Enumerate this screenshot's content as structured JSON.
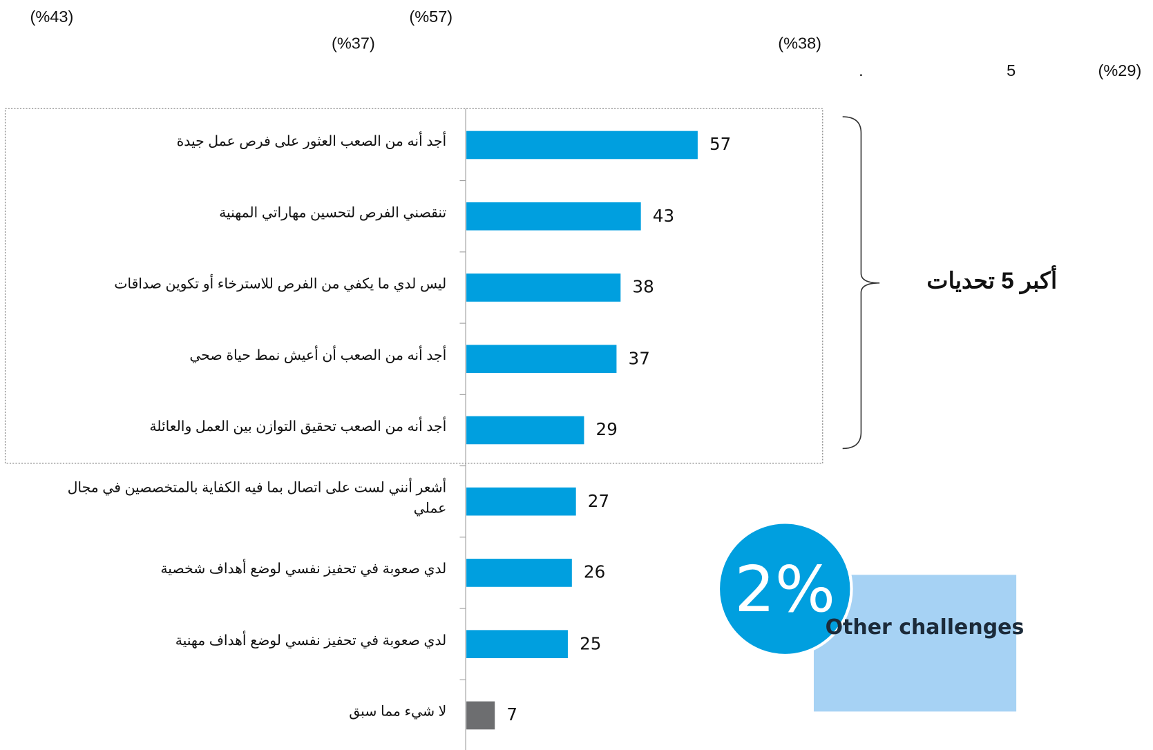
{
  "header_fragments": [
    "(%43)",
    "(%57)",
    "(%37)",
    "(%38)",
    "5",
    ".",
    "(%29)"
  ],
  "chart_data": {
    "type": "bar",
    "orientation": "horizontal",
    "categories": [
      "أجد أنه من الصعب العثور على فرص عمل جيدة",
      "تنقصني الفرص لتحسين مهاراتي المهنية",
      "ليس لدي ما يكفي من الفرص للاسترخاء أو تكوين صداقات",
      "أجد أنه من الصعب أن أعيش نمط حياة صحي",
      "أجد أنه من الصعب تحقيق التوازن بين العمل والعائلة",
      "أشعر أنني لست على اتصال بما فيه الكفاية بالمتخصصين في مجال عملي",
      "لدي صعوبة في تحفيز نفسي لوضع أهداف شخصية",
      "لدي صعوبة في تحفيز نفسي لوضع أهداف مهنية",
      "لا شيء مما سبق"
    ],
    "values": [
      57,
      43,
      38,
      37,
      29,
      27,
      26,
      25,
      7
    ],
    "colors": [
      "#009fdf",
      "#009fdf",
      "#009fdf",
      "#009fdf",
      "#009fdf",
      "#009fdf",
      "#009fdf",
      "#009fdf",
      "#6d6e70"
    ],
    "annotations": {
      "bracket_label": "أكبر 5 تحديات",
      "highlight_value": "2%",
      "highlight_label": "Other challenges"
    }
  }
}
